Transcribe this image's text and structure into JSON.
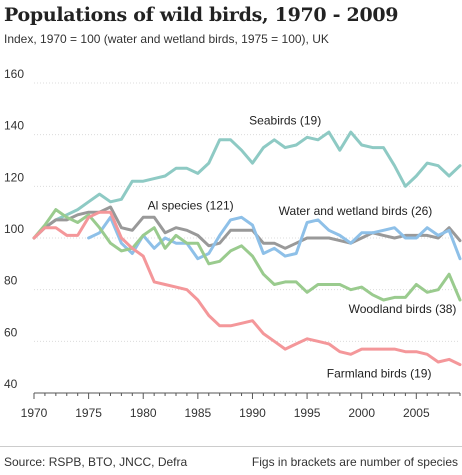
{
  "title": "Populations of wild birds, 1970 - 2009",
  "subtitle": "Index, 1970 = 100 (water and wetland birds, 1975 = 100), UK",
  "source": "Source: RSPB, BTO, JNCC, Defra",
  "note": "Figs in brackets are number of species",
  "chart_data": {
    "type": "line",
    "title": "Populations of wild birds, 1970 - 2009",
    "subtitle": "Index, 1970 = 100 (water and wetland birds, 1975 = 100), UK",
    "xlim": [
      1970,
      2009
    ],
    "ylim": [
      40,
      160
    ],
    "x_ticks": [
      1970,
      1975,
      1980,
      1985,
      1990,
      1995,
      2000,
      2005
    ],
    "y_ticks": [
      40,
      60,
      80,
      100,
      120,
      140,
      160
    ],
    "x_tick_labels": [
      "1970",
      "1975",
      "1980",
      "1985",
      "1990",
      "1995",
      "2000",
      "2005"
    ],
    "y_tick_labels": [
      "40",
      "60",
      "80",
      "100",
      "120",
      "140",
      "160"
    ],
    "grid": "horizontal",
    "series": [
      {
        "name": "Seabirds (19)",
        "color": "#8ecac4",
        "x": [
          1970,
          1971,
          1972,
          1973,
          1974,
          1975,
          1976,
          1977,
          1978,
          1979,
          1980,
          1981,
          1982,
          1983,
          1984,
          1985,
          1986,
          1987,
          1988,
          1989,
          1990,
          1991,
          1992,
          1993,
          1994,
          1995,
          1996,
          1997,
          1998,
          1999,
          2000,
          2001,
          2002,
          2003,
          2004,
          2005,
          2006,
          2007,
          2008,
          2009
        ],
        "values": [
          100,
          104,
          107,
          109,
          111,
          114,
          117,
          114,
          115,
          122,
          122,
          123,
          124,
          127,
          127,
          125,
          129,
          138,
          138,
          134,
          129,
          135,
          138,
          135,
          136,
          139,
          138,
          141,
          134,
          141,
          136,
          135,
          135,
          128,
          120,
          124,
          129,
          128,
          124,
          128
        ]
      },
      {
        "name": "Al species (121)",
        "color": "#999999",
        "x": [
          1970,
          1971,
          1972,
          1973,
          1974,
          1975,
          1976,
          1977,
          1978,
          1979,
          1980,
          1981,
          1982,
          1983,
          1984,
          1985,
          1986,
          1987,
          1988,
          1989,
          1990,
          1991,
          1992,
          1993,
          1994,
          1995,
          1996,
          1997,
          1998,
          1999,
          2000,
          2001,
          2002,
          2003,
          2004,
          2005,
          2006,
          2007,
          2008,
          2009
        ],
        "values": [
          100,
          104,
          107,
          107,
          109,
          110,
          110,
          112,
          104,
          103,
          108,
          108,
          102,
          104,
          103,
          101,
          97,
          98,
          103,
          103,
          103,
          98,
          98,
          96,
          98,
          100,
          100,
          100,
          99,
          98,
          100,
          102,
          101,
          100,
          101,
          101,
          101,
          100,
          104,
          99
        ]
      },
      {
        "name": "Water and wetland birds (26)",
        "color": "#8ec0e8",
        "x": [
          1975,
          1976,
          1977,
          1978,
          1979,
          1980,
          1981,
          1982,
          1983,
          1984,
          1985,
          1986,
          1987,
          1988,
          1989,
          1990,
          1991,
          1992,
          1993,
          1994,
          1995,
          1996,
          1997,
          1998,
          1999,
          2000,
          2001,
          2002,
          2003,
          2004,
          2005,
          2006,
          2007,
          2008,
          2009
        ],
        "values": [
          100,
          102,
          108,
          98,
          94,
          101,
          96,
          100,
          98,
          98,
          92,
          94,
          101,
          107,
          108,
          105,
          94,
          96,
          93,
          94,
          106,
          107,
          103,
          101,
          98,
          102,
          102,
          103,
          104,
          100,
          100,
          104,
          101,
          103,
          92
        ]
      },
      {
        "name": "Woodland birds (38)",
        "color": "#9acb8e",
        "x": [
          1970,
          1971,
          1972,
          1973,
          1974,
          1975,
          1976,
          1977,
          1978,
          1979,
          1980,
          1981,
          1982,
          1983,
          1984,
          1985,
          1986,
          1987,
          1988,
          1989,
          1990,
          1991,
          1992,
          1993,
          1994,
          1995,
          1996,
          1997,
          1998,
          1999,
          2000,
          2001,
          2002,
          2003,
          2004,
          2005,
          2006,
          2007,
          2008,
          2009
        ],
        "values": [
          100,
          105,
          111,
          108,
          106,
          109,
          104,
          98,
          95,
          96,
          101,
          104,
          96,
          101,
          98,
          98,
          90,
          91,
          95,
          97,
          93,
          86,
          82,
          83,
          83,
          79,
          82,
          82,
          82,
          80,
          81,
          78,
          76,
          77,
          77,
          82,
          79,
          80,
          86,
          76
        ]
      },
      {
        "name": "Farmland birds (19)",
        "color": "#f4979a",
        "x": [
          1970,
          1971,
          1972,
          1973,
          1974,
          1975,
          1976,
          1977,
          1978,
          1979,
          1980,
          1981,
          1982,
          1983,
          1984,
          1985,
          1986,
          1987,
          1988,
          1989,
          1990,
          1991,
          1992,
          1993,
          1994,
          1995,
          1996,
          1997,
          1998,
          1999,
          2000,
          2001,
          2002,
          2003,
          2004,
          2005,
          2006,
          2007,
          2008,
          2009
        ],
        "values": [
          100,
          104,
          104,
          101,
          101,
          108,
          110,
          110,
          100,
          96,
          93,
          83,
          82,
          81,
          80,
          76,
          70,
          66,
          66,
          67,
          68,
          63,
          60,
          57,
          59,
          61,
          60,
          59,
          56,
          55,
          57,
          57,
          57,
          57,
          56,
          56,
          55,
          52,
          53,
          51
        ]
      }
    ],
    "annotations": [
      {
        "text": "Seabirds (19)",
        "x": 1989.7,
        "y": 144
      },
      {
        "text": "Al species (121)",
        "x": 1980.4,
        "y": 111
      },
      {
        "text": "Water and wetland birds (26)",
        "x": 1992.4,
        "y": 109
      },
      {
        "text": "Woodland birds (38)",
        "x": 1998.8,
        "y": 71
      },
      {
        "text": "Farmland birds (19)",
        "x": 1996.8,
        "y": 46
      }
    ]
  }
}
